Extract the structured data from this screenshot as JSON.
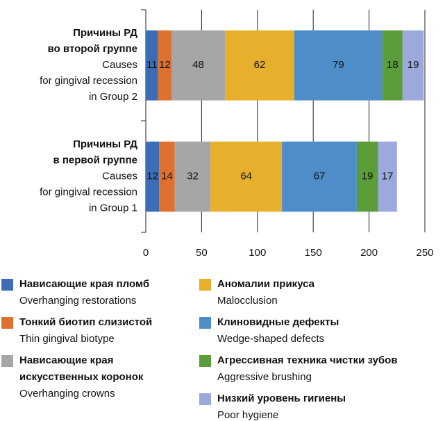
{
  "chart_data": {
    "type": "bar",
    "orientation": "horizontal",
    "stacked": true,
    "categories": [
      [
        "Причины РД",
        "во второй группе",
        "Causes",
        "for gingival recession",
        "in Group 2"
      ],
      [
        "Причины РД",
        "в первой группе",
        "Causes",
        "for gingival recession",
        "in Group 1"
      ]
    ],
    "series": [
      {
        "name": "Нависающие края пломб",
        "name_en": "Overhanging restorations",
        "color": "#3c6db4",
        "values": [
          11,
          12
        ]
      },
      {
        "name": "Тонкий биотип слизистой",
        "name_en": "Thin gingival biotype",
        "color": "#df7130",
        "values": [
          12,
          14
        ]
      },
      {
        "name": "Нависающие края искусственных коронок",
        "name_en": "Overhanging crowns",
        "color": "#a6a6a6",
        "values": [
          48,
          32
        ]
      },
      {
        "name": "Аномалии прикуса",
        "name_en": "Malocclusion",
        "color": "#e7b02c",
        "values": [
          62,
          64
        ]
      },
      {
        "name": "Клиновидные дефекты",
        "name_en": "Wedge-shaped defects",
        "color": "#4e8dc8",
        "values": [
          79,
          67
        ]
      },
      {
        "name": "Агрессивная техника чистки зубов",
        "name_en": "Aggressive brushing",
        "color": "#5b9d3b",
        "values": [
          18,
          19
        ]
      },
      {
        "name": "Низкий уровень гигиены",
        "name_en": "Poor hygiene",
        "color": "#9ca9dd",
        "values": [
          19,
          17
        ]
      }
    ],
    "xlim": [
      0,
      250
    ],
    "xticks": [
      0,
      50,
      100,
      150,
      200,
      250
    ],
    "grid": true
  }
}
